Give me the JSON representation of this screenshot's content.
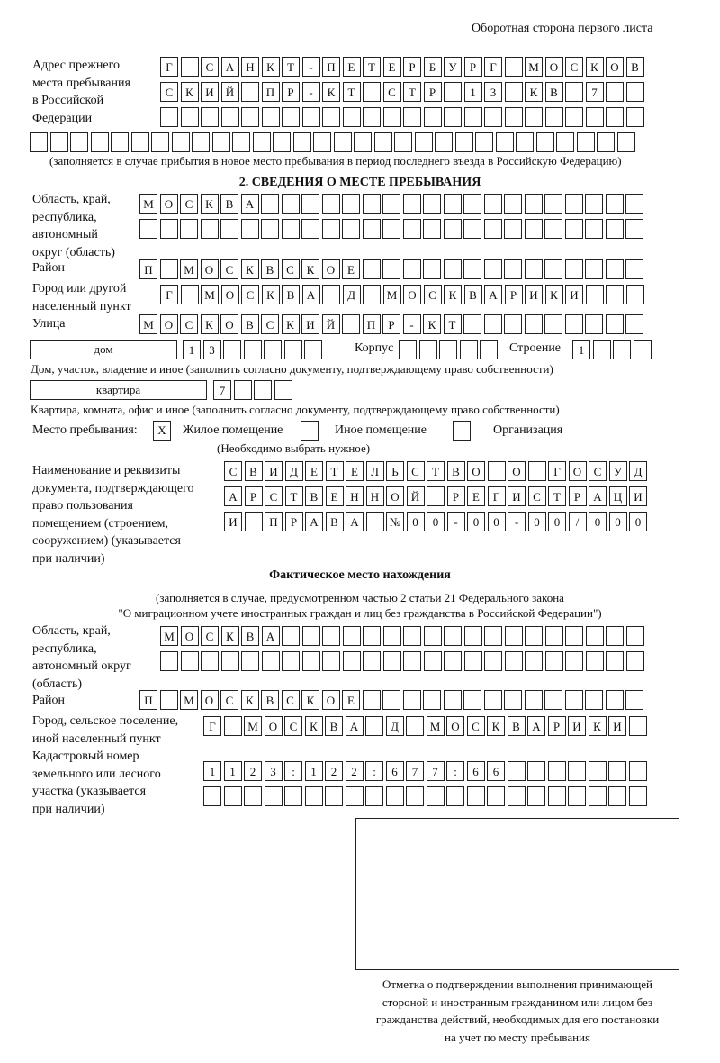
{
  "page_header": "Оборотная сторона первого листа",
  "prev_address": {
    "label": [
      "Адрес прежнего",
      "места пребывания",
      "в Российской",
      "Федерации"
    ],
    "rows": [
      [
        "Г",
        "",
        "С",
        "А",
        "Н",
        "К",
        "Т",
        "-",
        "П",
        "Е",
        "Т",
        "Е",
        "Р",
        "Б",
        "У",
        "Р",
        "Г",
        "",
        "М",
        "О",
        "С",
        "К",
        "О",
        "В"
      ],
      [
        "С",
        "К",
        "И",
        "Й",
        "",
        "П",
        "Р",
        "-",
        "К",
        "Т",
        "",
        "С",
        "Т",
        "Р",
        "",
        "1",
        "3",
        "",
        "К",
        "В",
        "",
        "7",
        "",
        ""
      ],
      [
        "",
        "",
        "",
        "",
        "",
        "",
        "",
        "",
        "",
        "",
        "",
        "",
        "",
        "",
        "",
        "",
        "",
        "",
        "",
        "",
        "",
        "",
        "",
        ""
      ],
      [
        "",
        "",
        "",
        "",
        "",
        "",
        "",
        "",
        "",
        "",
        "",
        "",
        "",
        "",
        "",
        "",
        "",
        "",
        "",
        "",
        "",
        "",
        "",
        "",
        "",
        "",
        "",
        "",
        "",
        ""
      ]
    ],
    "note": "(заполняется в случае прибытия в новое место пребывания в период последнего въезда в Российскую Федерацию)"
  },
  "section2": {
    "title": "2. СВЕДЕНИЯ О МЕСТЕ ПРЕБЫВАНИЯ",
    "region_label": [
      "Область, край,",
      "республика,",
      "автономный",
      "округ (область)"
    ],
    "region_rows": [
      [
        "М",
        "О",
        "С",
        "К",
        "В",
        "А",
        "",
        "",
        "",
        "",
        "",
        "",
        "",
        "",
        "",
        "",
        "",
        "",
        "",
        "",
        "",
        "",
        "",
        "",
        ""
      ],
      [
        "",
        "",
        "",
        "",
        "",
        "",
        "",
        "",
        "",
        "",
        "",
        "",
        "",
        "",
        "",
        "",
        "",
        "",
        "",
        "",
        "",
        "",
        "",
        "",
        ""
      ]
    ],
    "district_label": "Район",
    "district": [
      "П",
      "",
      "М",
      "О",
      "С",
      "К",
      "В",
      "С",
      "К",
      "О",
      "Е",
      "",
      "",
      "",
      "",
      "",
      "",
      "",
      "",
      "",
      "",
      "",
      "",
      "",
      ""
    ],
    "city_label": [
      "Город или другой",
      "населенный пункт"
    ],
    "city": [
      "Г",
      "",
      "М",
      "О",
      "С",
      "К",
      "В",
      "А",
      "",
      "Д",
      "",
      "М",
      "О",
      "С",
      "К",
      "В",
      "А",
      "Р",
      "И",
      "К",
      "И",
      "",
      "",
      ""
    ],
    "street_label": "Улица",
    "street": [
      "М",
      "О",
      "С",
      "К",
      "О",
      "В",
      "С",
      "К",
      "И",
      "Й",
      "",
      "П",
      "Р",
      "-",
      "К",
      "Т",
      "",
      "",
      "",
      "",
      "",
      "",
      "",
      "",
      ""
    ],
    "house_type": "дом",
    "house": [
      "1",
      "3",
      "",
      "",
      "",
      "",
      ""
    ],
    "korpus_label": "Корпус",
    "korpus": [
      "",
      "",
      "",
      "",
      ""
    ],
    "stroenie_label": "Строение",
    "stroenie": [
      "1",
      "",
      "",
      ""
    ],
    "house_note": "Дом, участок, владение и иное (заполнить согласно документу, подтверждающему право собственности)",
    "flat_type": "квартира",
    "flat": [
      "7",
      "",
      "",
      ""
    ],
    "flat_note": "Квартира, комната, офис и иное (заполнить согласно документу, подтверждающему право собственности)",
    "place_label": "Место пребывания:",
    "place_options": [
      {
        "label": "Жилое помещение",
        "mark": "X"
      },
      {
        "label": "Иное помещение",
        "mark": ""
      },
      {
        "label": "Организация",
        "mark": ""
      }
    ],
    "place_note": "(Необходимо выбрать нужное)",
    "doc_label": [
      "Наименование и реквизиты",
      "документа, подтверждающего",
      "право пользования",
      "помещением (строением,",
      "сооружением) (указывается",
      "при наличии)"
    ],
    "doc_rows": [
      [
        "С",
        "В",
        "И",
        "Д",
        "Е",
        "Т",
        "Е",
        "Л",
        "Ь",
        "С",
        "Т",
        "В",
        "О",
        "",
        "О",
        "",
        "Г",
        "О",
        "С",
        "У",
        "Д"
      ],
      [
        "А",
        "Р",
        "С",
        "Т",
        "В",
        "Е",
        "Н",
        "Н",
        "О",
        "Й",
        "",
        "Р",
        "Е",
        "Г",
        "И",
        "С",
        "Т",
        "Р",
        "А",
        "Ц",
        "И"
      ],
      [
        "И",
        "",
        "П",
        "Р",
        "А",
        "В",
        "А",
        "",
        "№",
        "0",
        "0",
        "-",
        "0",
        "0",
        "-",
        "0",
        "0",
        "/",
        "0",
        "0",
        "0"
      ]
    ]
  },
  "actual": {
    "title": "Фактическое место нахождения",
    "note": [
      "(заполняется в случае, предусмотренном частью 2 статьи 21 Федерального закона",
      "\"О миграционном учете иностранных граждан и лиц без гражданства в Российской Федерации\")"
    ],
    "region_label": [
      "Область, край,",
      "республика,",
      "автономный округ",
      "(область)"
    ],
    "region_rows": [
      [
        "М",
        "О",
        "С",
        "К",
        "В",
        "А",
        "",
        "",
        "",
        "",
        "",
        "",
        "",
        "",
        "",
        "",
        "",
        "",
        "",
        "",
        "",
        "",
        "",
        ""
      ],
      [
        "",
        "",
        "",
        "",
        "",
        "",
        "",
        "",
        "",
        "",
        "",
        "",
        "",
        "",
        "",
        "",
        "",
        "",
        "",
        "",
        "",
        "",
        "",
        ""
      ]
    ],
    "district_label": "Район",
    "district": [
      "П",
      "",
      "М",
      "О",
      "С",
      "К",
      "В",
      "С",
      "К",
      "О",
      "Е",
      "",
      "",
      "",
      "",
      "",
      "",
      "",
      "",
      "",
      "",
      "",
      "",
      "",
      ""
    ],
    "city_label": [
      "Город, сельское поселение,",
      "иной населенный пункт"
    ],
    "city": [
      "Г",
      "",
      "М",
      "О",
      "С",
      "К",
      "В",
      "А",
      "",
      "Д",
      "",
      "М",
      "О",
      "С",
      "К",
      "В",
      "А",
      "Р",
      "И",
      "К",
      "И",
      ""
    ],
    "cadastral_label": [
      "Кадастровый номер",
      "земельного или лесного",
      "участка (указывается",
      "при наличии)"
    ],
    "cadastral_rows": [
      [
        "1",
        "1",
        "2",
        "3",
        ":",
        "1",
        "2",
        "2",
        ":",
        "6",
        "7",
        "7",
        ":",
        "6",
        "6",
        "",
        "",
        "",
        "",
        "",
        "",
        ""
      ],
      [
        "",
        "",
        "",
        "",
        "",
        "",
        "",
        "",
        "",
        "",
        "",
        "",
        "",
        "",
        "",
        "",
        "",
        "",
        "",
        "",
        "",
        ""
      ]
    ]
  },
  "stamp_caption": [
    "Отметка о подтверждении выполнения принимающей",
    "стороной и иностранным гражданином или лицом без",
    "гражданства действий, необходимых для его постановки",
    "на учет по месту пребывания"
  ]
}
